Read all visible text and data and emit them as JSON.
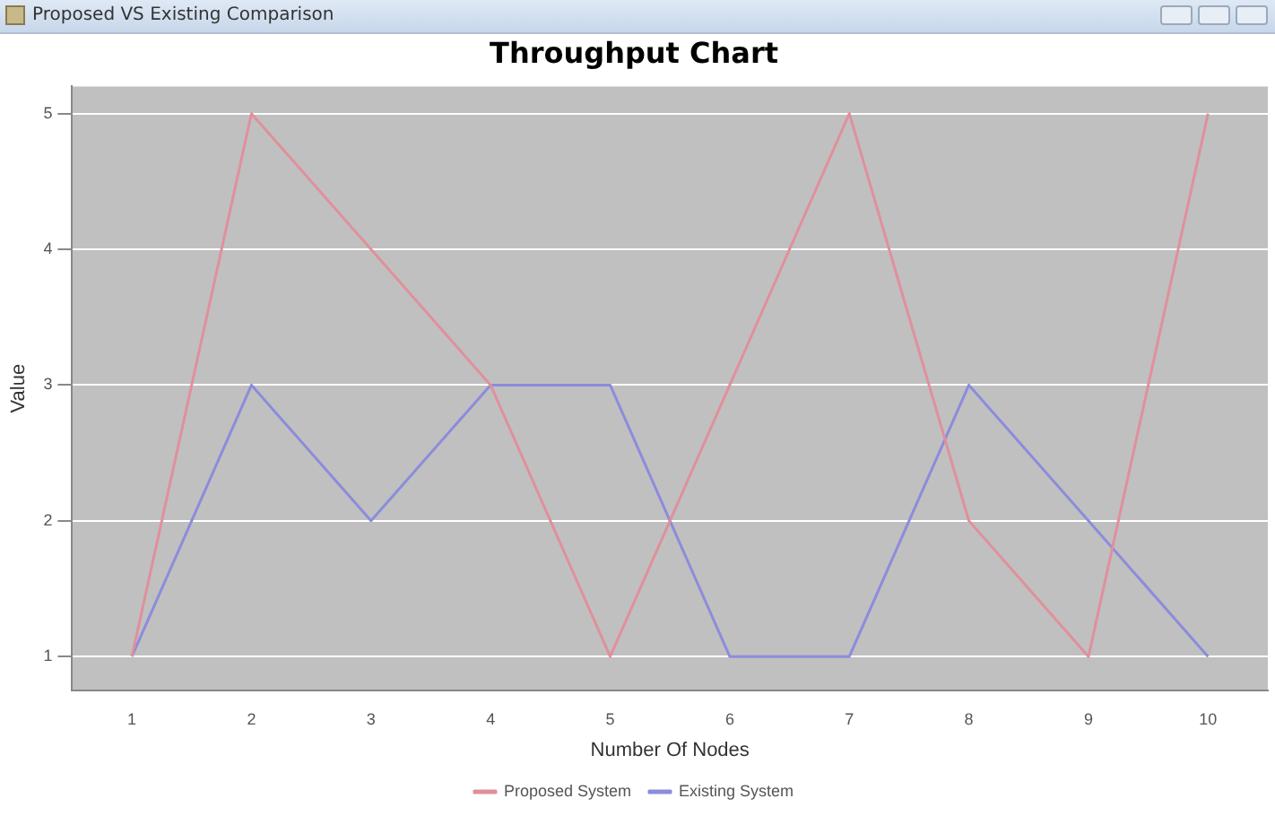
{
  "chart_data": {
    "type": "line",
    "title": "Throughput Chart",
    "xlabel": "Number Of Nodes",
    "ylabel": "Value",
    "annotations": [
      "Proposed VS Existing Comparison"
    ],
    "categories": [
      "1",
      "2",
      "3",
      "4",
      "5",
      "6",
      "7",
      "8",
      "9",
      "10"
    ],
    "series": [
      {
        "name": "Proposed System",
        "color": "#e0909c",
        "values": [
          1,
          5,
          4,
          3,
          1,
          3,
          5,
          2,
          1,
          5
        ]
      },
      {
        "name": "Existing System",
        "color": "#8c8cdc",
        "values": [
          1,
          3,
          2,
          3,
          3,
          1,
          1,
          3,
          2,
          1
        ]
      }
    ],
    "ylim": [
      0.75,
      5.2
    ],
    "yticks": [
      1,
      2,
      3,
      4,
      5
    ],
    "grid": "y",
    "legend": "bottom",
    "marker": "none",
    "line_style": "solid"
  }
}
